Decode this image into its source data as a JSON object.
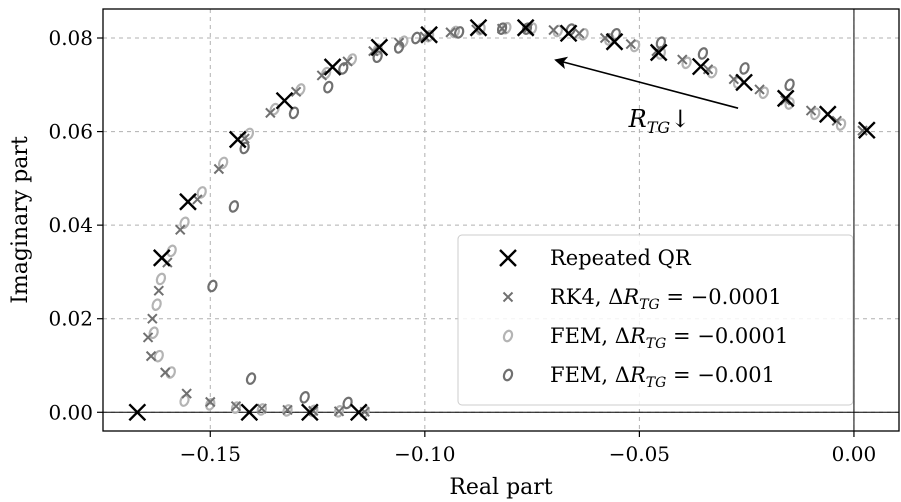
{
  "chart_data": {
    "type": "scatter",
    "title": "",
    "xlabel": "Real part",
    "ylabel": "Imaginary part",
    "xlim": [
      -0.175,
      0.0105
    ],
    "ylim": [
      -0.004,
      0.0862
    ],
    "grid": true,
    "legend_position": "lower-right",
    "xticks": [
      -0.15,
      -0.1,
      -0.05,
      0.0
    ],
    "xtick_labels": [
      "−0.15",
      "−0.10",
      "−0.05",
      "0.00"
    ],
    "yticks": [
      0.0,
      0.02,
      0.04,
      0.06,
      0.08
    ],
    "ytick_labels": [
      "0.00",
      "0.02",
      "0.04",
      "0.06",
      "0.08"
    ],
    "reference_lines": {
      "vertical_x": 0.0,
      "horizontal_y": 0.0
    },
    "annotation": {
      "text": "R",
      "subscript": "TG",
      "suffix": "↓",
      "arrow_from": [
        -0.027,
        0.065
      ],
      "arrow_to": [
        -0.0695,
        0.0753
      ],
      "text_at": [
        -0.0525,
        0.061
      ]
    },
    "series": [
      {
        "name": "Repeated QR",
        "marker": "x",
        "color": "#000000",
        "points": [
          [
            0.003,
            0.0603
          ],
          [
            -0.0061,
            0.0637
          ],
          [
            -0.0159,
            0.0671
          ],
          [
            -0.0256,
            0.0705
          ],
          [
            -0.0357,
            0.0739
          ],
          [
            -0.0455,
            0.0769
          ],
          [
            -0.0558,
            0.0792
          ],
          [
            -0.0665,
            0.081
          ],
          [
            -0.0765,
            0.0822
          ],
          [
            -0.0875,
            0.0822
          ],
          [
            -0.099,
            0.0807
          ],
          [
            -0.1106,
            0.078
          ],
          [
            -0.1215,
            0.0738
          ],
          [
            -0.1327,
            0.0666
          ],
          [
            -0.1436,
            0.0583
          ],
          [
            -0.1552,
            0.045
          ],
          [
            -0.1613,
            0.033
          ],
          [
            -0.167,
            0.0
          ],
          [
            -0.1409,
            0.0
          ],
          [
            -0.1268,
            0.0
          ],
          [
            -0.1154,
            0.0
          ]
        ]
      },
      {
        "name": "RK4, ΔR_TG = −0.0001",
        "marker": "x",
        "color": "#707070",
        "points": [
          [
            0.002,
            0.0602
          ],
          [
            -0.004,
            0.0623
          ],
          [
            -0.01,
            0.0645
          ],
          [
            -0.016,
            0.0667
          ],
          [
            -0.022,
            0.069
          ],
          [
            -0.028,
            0.0712
          ],
          [
            -0.034,
            0.0733
          ],
          [
            -0.04,
            0.0754
          ],
          [
            -0.046,
            0.0772
          ],
          [
            -0.052,
            0.0787
          ],
          [
            -0.058,
            0.08
          ],
          [
            -0.064,
            0.081
          ],
          [
            -0.07,
            0.0817
          ],
          [
            -0.076,
            0.082
          ],
          [
            -0.082,
            0.082
          ],
          [
            -0.088,
            0.0818
          ],
          [
            -0.094,
            0.0812
          ],
          [
            -0.1,
            0.0803
          ],
          [
            -0.106,
            0.079
          ],
          [
            -0.112,
            0.0772
          ],
          [
            -0.118,
            0.075
          ],
          [
            -0.124,
            0.072
          ],
          [
            -0.13,
            0.0685
          ],
          [
            -0.136,
            0.064
          ],
          [
            -0.142,
            0.0585
          ],
          [
            -0.148,
            0.052
          ],
          [
            -0.153,
            0.0455
          ],
          [
            -0.157,
            0.039
          ],
          [
            -0.16,
            0.032
          ],
          [
            -0.162,
            0.026
          ],
          [
            -0.1635,
            0.02
          ],
          [
            -0.1645,
            0.016
          ],
          [
            -0.1638,
            0.012
          ],
          [
            -0.1605,
            0.0085
          ],
          [
            -0.1555,
            0.004
          ],
          [
            -0.15,
            0.0022
          ],
          [
            -0.144,
            0.0013
          ],
          [
            -0.138,
            0.0008
          ],
          [
            -0.132,
            0.0005
          ],
          [
            -0.126,
            0.0003
          ],
          [
            -0.12,
            0.0002
          ],
          [
            -0.114,
            0.0001
          ]
        ]
      },
      {
        "name": "FEM, ΔR_TG = −0.0001",
        "marker": "o",
        "color": "#b4b4b4",
        "points": [
          [
            -0.003,
            0.0615
          ],
          [
            -0.009,
            0.0638
          ],
          [
            -0.015,
            0.066
          ],
          [
            -0.021,
            0.0683
          ],
          [
            -0.027,
            0.0705
          ],
          [
            -0.033,
            0.0727
          ],
          [
            -0.039,
            0.0747
          ],
          [
            -0.045,
            0.0767
          ],
          [
            -0.051,
            0.0783
          ],
          [
            -0.057,
            0.0797
          ],
          [
            -0.063,
            0.0808
          ],
          [
            -0.069,
            0.0815
          ],
          [
            -0.075,
            0.082
          ],
          [
            -0.081,
            0.0821
          ],
          [
            -0.087,
            0.0819
          ],
          [
            -0.093,
            0.0813
          ],
          [
            -0.099,
            0.0804
          ],
          [
            -0.105,
            0.0792
          ],
          [
            -0.111,
            0.0775
          ],
          [
            -0.117,
            0.0754
          ],
          [
            -0.123,
            0.0725
          ],
          [
            -0.129,
            0.069
          ],
          [
            -0.135,
            0.0648
          ],
          [
            -0.141,
            0.0595
          ],
          [
            -0.147,
            0.0533
          ],
          [
            -0.152,
            0.047
          ],
          [
            -0.156,
            0.0405
          ],
          [
            -0.159,
            0.0345
          ],
          [
            -0.1615,
            0.0285
          ],
          [
            -0.1625,
            0.023
          ],
          [
            -0.1632,
            0.017
          ],
          [
            -0.162,
            0.012
          ],
          [
            -0.1592,
            0.0085
          ],
          [
            -0.156,
            0.0025
          ],
          [
            -0.15,
            0.0017
          ],
          [
            -0.144,
            0.001
          ],
          [
            -0.138,
            0.0006
          ],
          [
            -0.132,
            0.0004
          ],
          [
            -0.126,
            0.0003
          ],
          [
            -0.12,
            0.0002
          ],
          [
            -0.114,
            0.0001
          ]
        ]
      },
      {
        "name": "FEM, ΔR_TG = −0.001",
        "marker": "o",
        "color": "#707070",
        "points": [
          [
            -0.015,
            0.07
          ],
          [
            -0.0255,
            0.0735
          ],
          [
            -0.0352,
            0.0767
          ],
          [
            -0.045,
            0.079
          ],
          [
            -0.0555,
            0.0808
          ],
          [
            -0.066,
            0.0818
          ],
          [
            -0.0762,
            0.082
          ],
          [
            -0.082,
            0.082
          ],
          [
            -0.092,
            0.0812
          ],
          [
            -0.102,
            0.08
          ],
          [
            -0.106,
            0.078
          ],
          [
            -0.111,
            0.076
          ],
          [
            -0.119,
            0.0735
          ],
          [
            -0.1225,
            0.0695
          ],
          [
            -0.1305,
            0.064
          ],
          [
            -0.142,
            0.0565
          ],
          [
            -0.1445,
            0.044
          ],
          [
            -0.1495,
            0.027
          ],
          [
            -0.1405,
            0.0072
          ],
          [
            -0.128,
            0.0032
          ],
          [
            -0.118,
            0.002
          ]
        ]
      }
    ]
  }
}
